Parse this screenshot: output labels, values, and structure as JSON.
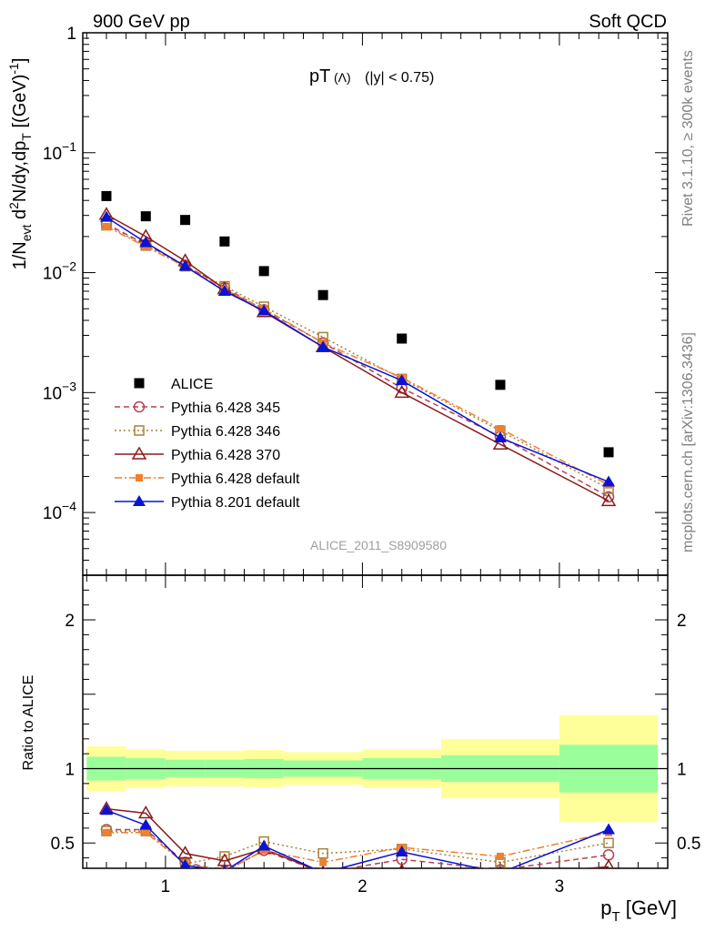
{
  "header": {
    "left": "900 GeV pp",
    "right": "Soft QCD"
  },
  "plot_title": {
    "main": "pT",
    "sub": "(Λ)",
    "cond": "(|y| < 0.75)"
  },
  "analysis_id": "ALICE_2011_S8909580",
  "side_text": {
    "rivet": "Rivet 3.1.10, ≥ 300k events",
    "mcplots": "mcplots.cern.ch [arXiv:1306.3436]"
  },
  "axis_labels": {
    "y_top": "1/N_evt d²N/dy,dp_T [(GeV)⁻¹]",
    "y_ratio": "Ratio to ALICE",
    "x": "p_T [GeV]"
  },
  "colors": {
    "alice": "#000000",
    "p345": "#b4424f",
    "p346": "#a8803a",
    "p370": "#8b1a1a",
    "p6def": "#f07f2e",
    "p8def": "#0a12d4",
    "band_inner": "#9aff9a",
    "band_outer": "#ffff99"
  },
  "chart_data": [
    {
      "type": "scatter",
      "panel": "main",
      "y_scale": "log",
      "ylim": [
        3e-05,
        1
      ],
      "xlim": [
        0.58,
        3.55
      ],
      "x_ticks": [
        1,
        2,
        3
      ],
      "y_ticks": [
        "1",
        "10^-1",
        "10^-2",
        "10^-3",
        "10^-4"
      ],
      "x": [
        0.7,
        0.9,
        1.1,
        1.3,
        1.5,
        1.8,
        2.2,
        2.7,
        3.25
      ],
      "series": [
        {
          "name": "ALICE",
          "values": [
            0.0435,
            0.0295,
            0.0275,
            0.0182,
            0.0103,
            0.0065,
            0.00282,
            0.00116,
            0.000318
          ]
        },
        {
          "name": "Pythia 6.428 345",
          "values": [
            0.0255,
            0.0172,
            0.0115,
            0.0075,
            0.0049,
            0.0026,
            0.00109,
            0.00043,
            0.000135
          ]
        },
        {
          "name": "Pythia 6.428 346",
          "values": [
            0.0248,
            0.0168,
            0.0113,
            0.0077,
            0.0052,
            0.0029,
            0.0013,
            0.00048,
            0.000158
          ]
        },
        {
          "name": "Pythia 6.428 370",
          "values": [
            0.0305,
            0.02,
            0.0125,
            0.0073,
            0.0047,
            0.0024,
            0.001,
            0.00037,
            0.000125
          ]
        },
        {
          "name": "Pythia 6.428 default",
          "values": [
            0.0242,
            0.0165,
            0.0112,
            0.0072,
            0.005,
            0.0026,
            0.00133,
            0.0005,
            0.00017
          ]
        },
        {
          "name": "Pythia 8.201 default",
          "values": [
            0.029,
            0.0178,
            0.0113,
            0.007,
            0.0048,
            0.0024,
            0.00126,
            0.00042,
            0.00018
          ]
        }
      ],
      "legend_position": "lower-left"
    },
    {
      "type": "scatter",
      "panel": "ratio",
      "ylim": [
        0.33,
        2.3
      ],
      "xlim": [
        0.58,
        3.55
      ],
      "x_ticks": [
        1,
        2,
        3
      ],
      "y_ticks": [
        0.5,
        1,
        2
      ],
      "bins": [
        [
          0.6,
          0.8
        ],
        [
          0.8,
          1.0
        ],
        [
          1.0,
          1.2
        ],
        [
          1.2,
          1.4
        ],
        [
          1.4,
          1.6
        ],
        [
          1.6,
          2.0
        ],
        [
          2.0,
          2.4
        ],
        [
          2.4,
          3.0
        ],
        [
          3.0,
          3.5
        ]
      ],
      "band_inner": [
        [
          0.92,
          1.08
        ],
        [
          0.93,
          1.07
        ],
        [
          0.94,
          1.06
        ],
        [
          0.94,
          1.06
        ],
        [
          0.935,
          1.065
        ],
        [
          0.945,
          1.055
        ],
        [
          0.93,
          1.07
        ],
        [
          0.91,
          1.09
        ],
        [
          0.84,
          1.16
        ]
      ],
      "band_outer": [
        [
          0.85,
          1.15
        ],
        [
          0.87,
          1.13
        ],
        [
          0.88,
          1.12
        ],
        [
          0.88,
          1.12
        ],
        [
          0.875,
          1.125
        ],
        [
          0.89,
          1.11
        ],
        [
          0.87,
          1.13
        ],
        [
          0.8,
          1.2
        ],
        [
          0.64,
          1.36
        ]
      ],
      "x": [
        0.7,
        0.9,
        1.1,
        1.3,
        1.5,
        1.8,
        2.2,
        2.7,
        3.25
      ],
      "series": [
        {
          "name": "Pythia 6.428 345",
          "values": [
            0.59,
            0.59,
            0.37,
            0.31,
            0.45,
            0.3,
            0.39,
            0.32,
            0.42
          ]
        },
        {
          "name": "Pythia 6.428 346",
          "values": [
            0.58,
            0.58,
            0.36,
            0.41,
            0.51,
            0.43,
            0.46,
            0.37,
            0.5
          ]
        },
        {
          "name": "Pythia 6.428 370",
          "values": [
            0.73,
            0.7,
            0.43,
            0.38,
            0.46,
            0.3,
            0.31,
            0.29,
            0.34
          ]
        },
        {
          "name": "Pythia 6.428 default",
          "values": [
            0.57,
            0.57,
            0.36,
            0.31,
            0.45,
            0.37,
            0.47,
            0.41,
            0.57
          ]
        },
        {
          "name": "Pythia 8.201 default",
          "values": [
            0.72,
            0.62,
            0.35,
            0.31,
            0.48,
            0.3,
            0.44,
            0.3,
            0.59
          ]
        }
      ]
    }
  ]
}
